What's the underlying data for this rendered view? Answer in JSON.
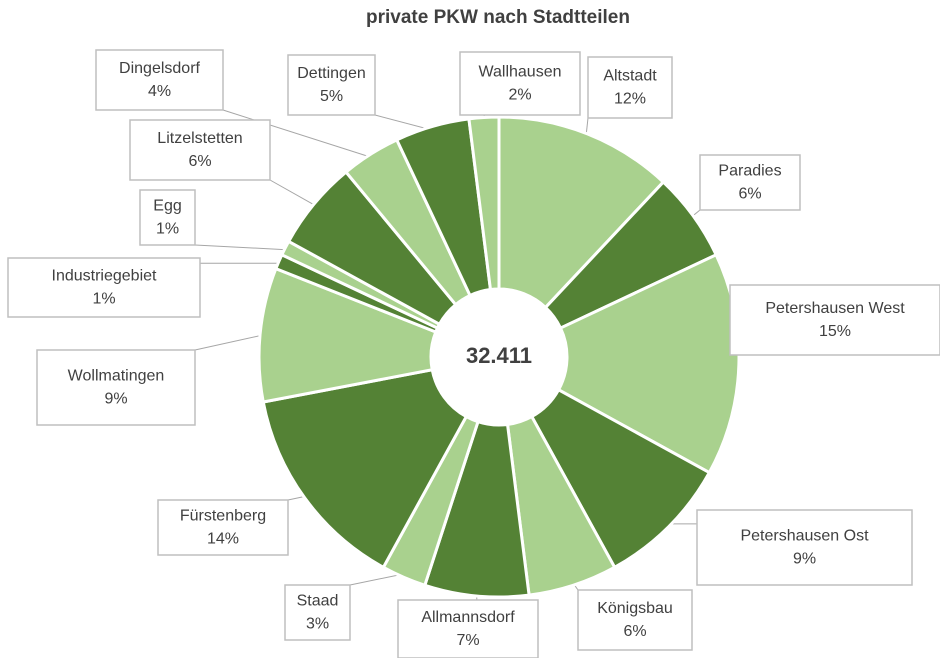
{
  "chart_data": {
    "type": "donut",
    "title": "private PKW nach Stadtteilen",
    "center_label": "32.411",
    "categories": [
      "Altstadt",
      "Paradies",
      "Petershausen West",
      "Petershausen Ost",
      "Königsbau",
      "Allmannsdorf",
      "Staad",
      "Fürstenberg",
      "Wollmatingen",
      "Industriegebiet",
      "Egg",
      "Litzelstetten",
      "Dingelsdorf",
      "Dettingen",
      "Wallhausen"
    ],
    "values": [
      12,
      6,
      15,
      9,
      6,
      7,
      3,
      14,
      9,
      1,
      1,
      6,
      4,
      5,
      2
    ],
    "value_labels": [
      "12%",
      "6%",
      "15%",
      "9%",
      "6%",
      "7%",
      "3%",
      "14%",
      "9%",
      "1%",
      "1%",
      "6%",
      "4%",
      "5%",
      "2%"
    ],
    "colors": [
      "#a9d18e",
      "#548235",
      "#a9d18e",
      "#548235",
      "#a9d18e",
      "#548235",
      "#a9d18e",
      "#548235",
      "#a9d18e",
      "#548235",
      "#a9d18e",
      "#548235",
      "#a9d18e",
      "#548235",
      "#a9d18e"
    ]
  }
}
